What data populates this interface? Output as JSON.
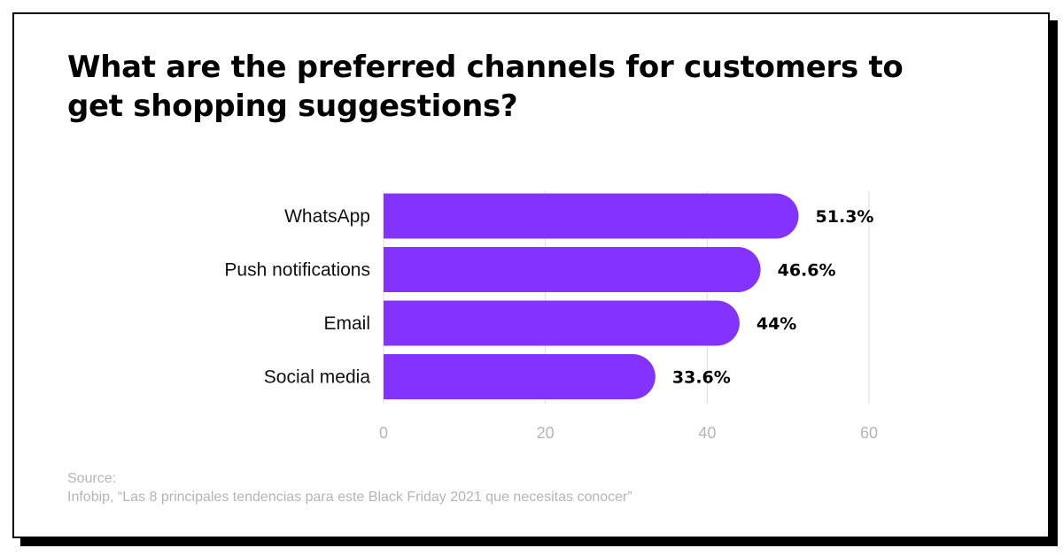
{
  "chart_data": {
    "type": "bar",
    "orientation": "horizontal",
    "title": "What are the preferred channels for customers to get shopping suggestions?",
    "categories": [
      "WhatsApp",
      "Push notifications",
      "Email",
      "Social media"
    ],
    "values": [
      51.3,
      46.6,
      44,
      33.6
    ],
    "value_labels": [
      "51.3%",
      "46.6%",
      "44%",
      "33.6%"
    ],
    "xlim": [
      0,
      60
    ],
    "xticks": [
      0,
      20,
      40,
      60
    ],
    "grid": true,
    "bar_color": "#8433ff"
  },
  "source": {
    "label": "Source:",
    "text": "Infobip, “Las 8 principales tendencias para este Black Friday 2021 que necesitas conocer”"
  }
}
